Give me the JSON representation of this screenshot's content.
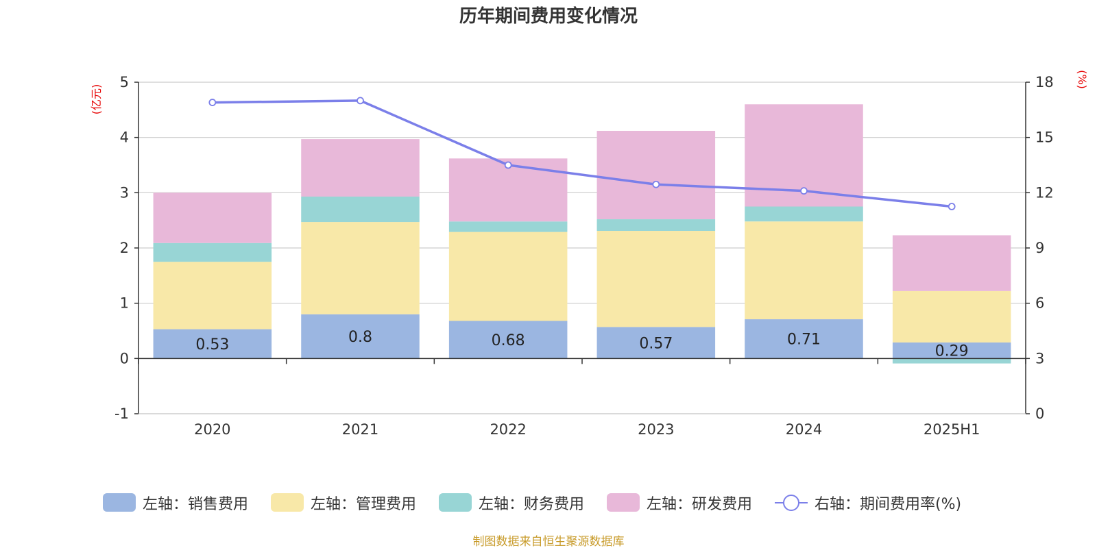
{
  "chart_data": {
    "type": "bar",
    "title": "历年期间费用变化情况",
    "left_unit": "(亿元)",
    "right_unit": "(%)",
    "categories": [
      "2020",
      "2021",
      "2022",
      "2023",
      "2024",
      "2025H1"
    ],
    "left_axis": {
      "min": -1,
      "max": 5,
      "ticks": [
        -1,
        0,
        1,
        2,
        3,
        4,
        5
      ]
    },
    "right_axis": {
      "min": 0,
      "max": 18,
      "ticks": [
        0,
        3,
        6,
        9,
        12,
        15,
        18
      ]
    },
    "stacked": true,
    "grid": true,
    "legend_position": "bottom",
    "series": [
      {
        "name": "左轴：销售费用",
        "type": "bar",
        "axis": "left",
        "color": "#9bb6e1",
        "values": [
          0.53,
          0.8,
          0.68,
          0.57,
          0.71,
          0.29
        ],
        "show_labels": true
      },
      {
        "name": "左轴：管理费用",
        "type": "bar",
        "axis": "left",
        "color": "#f8e8a8",
        "values": [
          1.22,
          1.67,
          1.61,
          1.74,
          1.77,
          0.93
        ]
      },
      {
        "name": "左轴：财务费用",
        "type": "bar",
        "axis": "left",
        "color": "#98d5d5",
        "values": [
          0.34,
          0.46,
          0.19,
          0.21,
          0.27,
          -0.09
        ]
      },
      {
        "name": "左轴：研发费用",
        "type": "bar",
        "axis": "left",
        "color": "#e8b8d9",
        "values": [
          0.91,
          1.04,
          1.14,
          1.6,
          1.85,
          1.01
        ]
      },
      {
        "name": "右轴：期间费用率(%)",
        "type": "line",
        "axis": "right",
        "color": "#7b7fe9",
        "values": [
          16.9,
          17.0,
          13.5,
          12.45,
          12.1,
          11.25
        ]
      }
    ],
    "source": "制图数据来自恒生聚源数据库"
  }
}
